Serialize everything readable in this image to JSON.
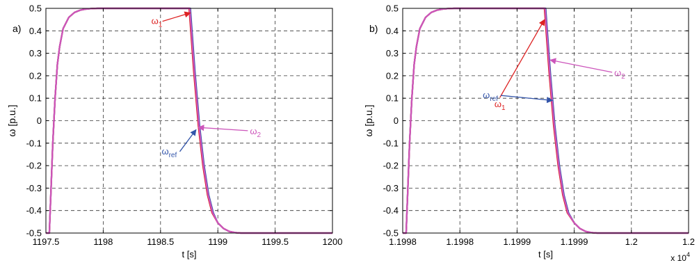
{
  "chart_data": [
    {
      "type": "line",
      "panel_label": "a)",
      "xlabel": "t [s]",
      "ylabel": "ω [p.u.]",
      "xlim": [
        1197.5,
        1200
      ],
      "ylim": [
        -0.5,
        0.5
      ],
      "x_ticks": [
        "1197.5",
        "1198",
        "1198.5",
        "1199",
        "1199.5",
        "1200"
      ],
      "y_ticks": [
        "-0.5",
        "-0.4",
        "-0.3",
        "-0.2",
        "-0.1",
        "0",
        "0.1",
        "0.2",
        "0.3",
        "0.4",
        "0.5"
      ],
      "x_exponent": "",
      "grid": true,
      "series": [
        {
          "name": "ω_ref",
          "color": "#3355aa",
          "x": [
            1197.5,
            1197.53,
            1197.56,
            1197.58,
            1197.6,
            1197.62,
            1197.65,
            1197.7,
            1197.75,
            1197.8,
            1197.85,
            1197.9,
            1197.95,
            1198.0,
            1198.7,
            1198.76,
            1198.8,
            1198.84,
            1198.88,
            1198.92,
            1198.96,
            1199.0,
            1199.05,
            1199.1,
            1199.15,
            1199.2,
            1199.25,
            1200.0
          ],
          "values": [
            -0.5,
            -0.5,
            -0.1,
            0.1,
            0.25,
            0.33,
            0.41,
            0.46,
            0.482,
            0.492,
            0.497,
            0.499,
            0.5,
            0.5,
            0.5,
            0.5,
            0.22,
            -0.02,
            -0.2,
            -0.33,
            -0.41,
            -0.455,
            -0.48,
            -0.493,
            -0.498,
            -0.5,
            -0.5,
            -0.5
          ]
        },
        {
          "name": "ω_1",
          "color": "#dd2222",
          "x": [
            1197.5,
            1197.53,
            1197.56,
            1197.58,
            1197.6,
            1197.62,
            1197.65,
            1197.7,
            1197.75,
            1197.8,
            1197.85,
            1197.9,
            1197.95,
            1198.0,
            1198.7,
            1198.75,
            1198.79,
            1198.83,
            1198.87,
            1198.91,
            1198.95,
            1199.0,
            1199.05,
            1199.1,
            1199.15,
            1199.2,
            1199.25,
            1200.0
          ],
          "values": [
            -0.5,
            -0.5,
            -0.1,
            0.1,
            0.25,
            0.33,
            0.41,
            0.46,
            0.482,
            0.492,
            0.497,
            0.499,
            0.5,
            0.5,
            0.5,
            0.5,
            0.22,
            -0.02,
            -0.2,
            -0.33,
            -0.41,
            -0.455,
            -0.48,
            -0.493,
            -0.498,
            -0.5,
            -0.5,
            -0.5
          ]
        },
        {
          "name": "ω_2",
          "color": "#cc55bb",
          "x": [
            1197.5,
            1197.53,
            1197.56,
            1197.58,
            1197.6,
            1197.62,
            1197.65,
            1197.7,
            1197.75,
            1197.8,
            1197.85,
            1197.9,
            1197.95,
            1198.0,
            1198.7,
            1198.755,
            1198.795,
            1198.835,
            1198.875,
            1198.915,
            1198.955,
            1199.0,
            1199.05,
            1199.1,
            1199.15,
            1199.2,
            1199.25,
            1200.0
          ],
          "values": [
            -0.5,
            -0.5,
            -0.1,
            0.1,
            0.25,
            0.33,
            0.41,
            0.46,
            0.482,
            0.492,
            0.497,
            0.499,
            0.5,
            0.5,
            0.5,
            0.5,
            0.22,
            -0.02,
            -0.2,
            -0.33,
            -0.41,
            -0.455,
            -0.48,
            -0.493,
            -0.498,
            -0.5,
            -0.5,
            -0.5
          ]
        }
      ],
      "annotations": [
        {
          "base": "ω",
          "sub": "1",
          "color": "#dd2222",
          "x": 1198.42,
          "y": 0.43,
          "tx": 1198.76,
          "ty": 0.48,
          "anchor": "start"
        },
        {
          "base": "ω",
          "sub": "2",
          "color": "#cc55bb",
          "x": 1199.28,
          "y": -0.06,
          "tx": 1198.83,
          "ty": -0.03,
          "anchor": "start"
        },
        {
          "base": "ω",
          "sub": "ref",
          "color": "#3355aa",
          "x": 1198.51,
          "y": -0.15,
          "tx": 1198.81,
          "ty": -0.04,
          "anchor": "start"
        }
      ]
    },
    {
      "type": "line",
      "panel_label": "b)",
      "xlabel": "t [s]",
      "ylabel": "ω [p.u.]",
      "xlim": [
        1.19975,
        1.2
      ],
      "ylim": [
        -0.5,
        0.5
      ],
      "x_ticks": [
        "1.1998",
        "1.1998",
        "1.1999",
        "1.1999",
        "1.2",
        "1.2"
      ],
      "y_ticks": [
        "-0.5",
        "-0.4",
        "-0.3",
        "-0.2",
        "-0.1",
        "0",
        "0.1",
        "0.2",
        "0.3",
        "0.4",
        "0.5"
      ],
      "x_exponent": "x 10^4",
      "grid": true,
      "series": [
        {
          "name": "ω_ref",
          "color": "#3355aa",
          "x": [
            1.19975,
            1.199753,
            1.199756,
            1.199758,
            1.19976,
            1.199762,
            1.199765,
            1.19977,
            1.199775,
            1.19978,
            1.199785,
            1.19979,
            1.199795,
            1.1998,
            1.19987,
            1.199875,
            1.199879,
            1.199883,
            1.199887,
            1.199891,
            1.199895,
            1.1999,
            1.199905,
            1.19991,
            1.199915,
            1.19992,
            1.199925,
            1.2
          ],
          "values": [
            -0.5,
            -0.5,
            -0.1,
            0.1,
            0.25,
            0.33,
            0.41,
            0.46,
            0.482,
            0.492,
            0.497,
            0.499,
            0.5,
            0.5,
            0.5,
            0.5,
            0.22,
            -0.02,
            -0.2,
            -0.33,
            -0.41,
            -0.455,
            -0.48,
            -0.493,
            -0.498,
            -0.5,
            -0.5,
            -0.5
          ]
        },
        {
          "name": "ω_1",
          "color": "#dd2222",
          "x": [
            1.19975,
            1.199753,
            1.199756,
            1.199758,
            1.19976,
            1.199762,
            1.199765,
            1.19977,
            1.199775,
            1.19978,
            1.199785,
            1.19979,
            1.199795,
            1.1998,
            1.19987,
            1.199874,
            1.199878,
            1.199882,
            1.199886,
            1.19989,
            1.199894,
            1.1999,
            1.199905,
            1.19991,
            1.199915,
            1.19992,
            1.199925,
            1.2
          ],
          "values": [
            -0.5,
            -0.5,
            -0.1,
            0.1,
            0.25,
            0.33,
            0.41,
            0.46,
            0.482,
            0.492,
            0.497,
            0.499,
            0.5,
            0.5,
            0.5,
            0.5,
            0.22,
            -0.02,
            -0.2,
            -0.33,
            -0.41,
            -0.455,
            -0.48,
            -0.493,
            -0.498,
            -0.5,
            -0.5,
            -0.5
          ]
        },
        {
          "name": "ω_2",
          "color": "#cc55bb",
          "x": [
            1.19975,
            1.199753,
            1.199756,
            1.199758,
            1.19976,
            1.199762,
            1.199765,
            1.19977,
            1.199775,
            1.19978,
            1.199785,
            1.19979,
            1.199795,
            1.1998,
            1.19987,
            1.1998745,
            1.1998785,
            1.1998825,
            1.1998865,
            1.1998905,
            1.1998945,
            1.1999,
            1.199905,
            1.19991,
            1.199915,
            1.19992,
            1.199925,
            1.2
          ],
          "values": [
            -0.5,
            -0.5,
            -0.1,
            0.1,
            0.25,
            0.33,
            0.41,
            0.46,
            0.482,
            0.492,
            0.497,
            0.499,
            0.5,
            0.5,
            0.5,
            0.5,
            0.22,
            -0.02,
            -0.2,
            -0.33,
            -0.41,
            -0.455,
            -0.48,
            -0.493,
            -0.498,
            -0.5,
            -0.5,
            -0.5
          ]
        }
      ],
      "annotations": [
        {
          "base": "ω",
          "sub": "1",
          "color": "#dd2222",
          "x": 1.199835,
          "y": 0.06,
          "tx": 1.199874,
          "ty": 0.45,
          "anchor": "middle"
        },
        {
          "base": "ω",
          "sub": "2",
          "color": "#cc55bb",
          "x": 1.199935,
          "y": 0.2,
          "tx": 1.199879,
          "ty": 0.27,
          "anchor": "start"
        },
        {
          "base": "ω",
          "sub": "ref",
          "color": "#3355aa",
          "x": 1.19982,
          "y": 0.1,
          "tx": 1.199881,
          "ty": 0.09,
          "anchor": "start"
        }
      ]
    }
  ]
}
